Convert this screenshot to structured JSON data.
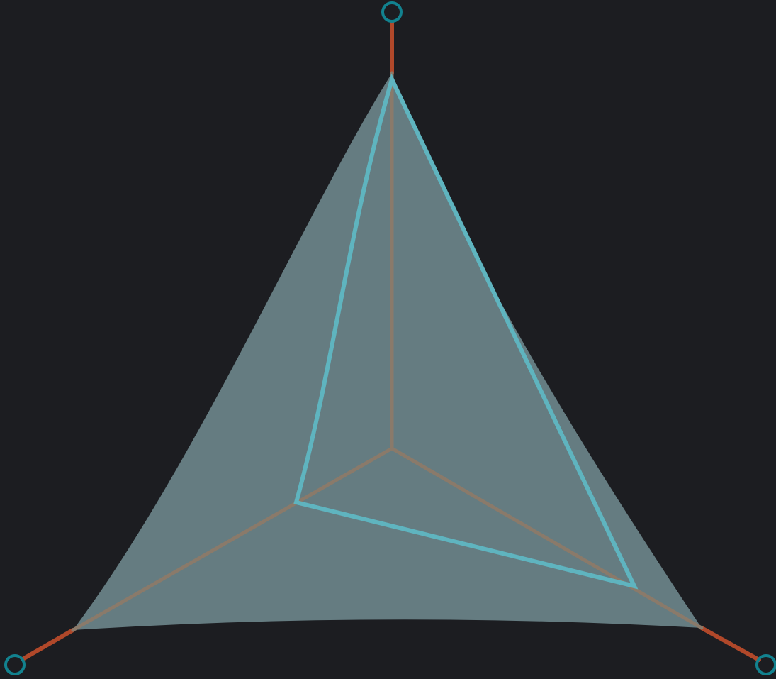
{
  "diagram": {
    "type": "ternary-radar",
    "axes": 3,
    "colors": {
      "background": "#1c1d21",
      "axis_line": "#b0482a",
      "axis_inner": "#8a7a6a",
      "handle": "#12828f",
      "region_fill": "#657c81",
      "outline_stroke": "#5fb4bf"
    },
    "icons": {
      "top_handle": "circle-handle-icon",
      "left_handle": "circle-handle-icon",
      "right_handle": "circle-handle-icon"
    }
  }
}
